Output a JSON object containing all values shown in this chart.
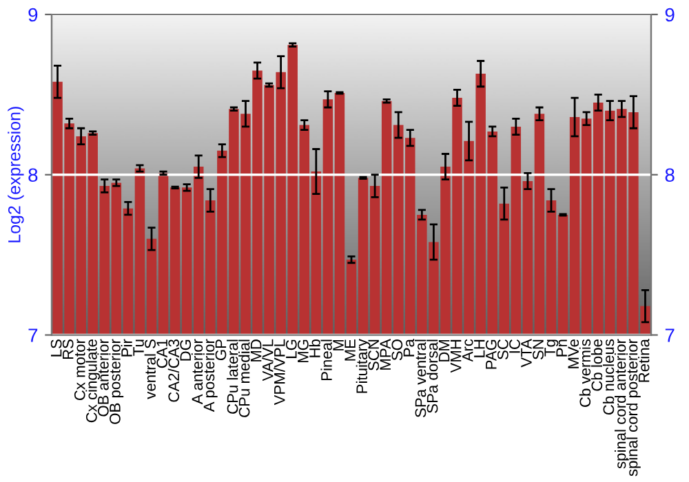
{
  "chart_data": {
    "type": "bar",
    "ylabel": "Log2 (expression)",
    "categories": [
      "LS",
      "RS",
      "Cx motor",
      "Cx cingulate",
      "OB anterior",
      "OB posterior",
      "Pir",
      "Tu",
      "ventral S",
      "CA1",
      "CA2/CA3",
      "DG",
      "A anterior",
      "A posterior",
      "GP",
      "CPu lateral",
      "CPu medial",
      "MD",
      "VA/VL",
      "VPM/VPL",
      "LG",
      "MG",
      "Hb",
      "Pineal",
      "M",
      "ME",
      "Pituitary",
      "SCN",
      "MPA",
      "SO",
      "Pa",
      "SPa ventral",
      "SPa dorsal",
      "DM",
      "VMH",
      "Arc",
      "LH",
      "PAG",
      "SC",
      "IC",
      "VTA",
      "SN",
      "Tg",
      "Pn",
      "MVe",
      "Cb vermis",
      "Cb lobe",
      "Cb nucleus",
      "spinal cord anterior",
      "spinal cord posterior",
      "Retina"
    ],
    "values": [
      8.58,
      8.32,
      8.24,
      8.26,
      7.93,
      7.95,
      7.79,
      8.04,
      7.6,
      8.01,
      7.92,
      7.92,
      8.05,
      7.84,
      8.15,
      8.41,
      8.38,
      8.65,
      8.56,
      8.64,
      8.81,
      8.31,
      8.02,
      8.47,
      8.51,
      7.47,
      7.98,
      7.93,
      8.46,
      8.31,
      8.23,
      7.75,
      7.58,
      8.05,
      8.48,
      8.21,
      8.63,
      8.27,
      7.82,
      8.3,
      7.96,
      8.38,
      7.84,
      7.75,
      8.36,
      8.35,
      8.45,
      8.4,
      8.41,
      8.39,
      7.18
    ],
    "errors": [
      0.1,
      0.03,
      0.05,
      0.01,
      0.04,
      0.02,
      0.04,
      0.02,
      0.07,
      0.01,
      0.005,
      0.02,
      0.07,
      0.07,
      0.04,
      0.01,
      0.08,
      0.05,
      0.01,
      0.1,
      0.01,
      0.03,
      0.14,
      0.05,
      0.005,
      0.02,
      0.005,
      0.07,
      0.01,
      0.08,
      0.05,
      0.03,
      0.11,
      0.08,
      0.05,
      0.12,
      0.08,
      0.03,
      0.1,
      0.05,
      0.05,
      0.04,
      0.07,
      0.005,
      0.12,
      0.04,
      0.05,
      0.06,
      0.05,
      0.1,
      0.1
    ],
    "color": "#b83232",
    "ylim": [
      7,
      9
    ],
    "yticks": [
      7,
      8,
      9
    ],
    "y2lim": [
      7,
      9
    ],
    "y2ticks": [
      7,
      8,
      9
    ],
    "grid": "y"
  }
}
